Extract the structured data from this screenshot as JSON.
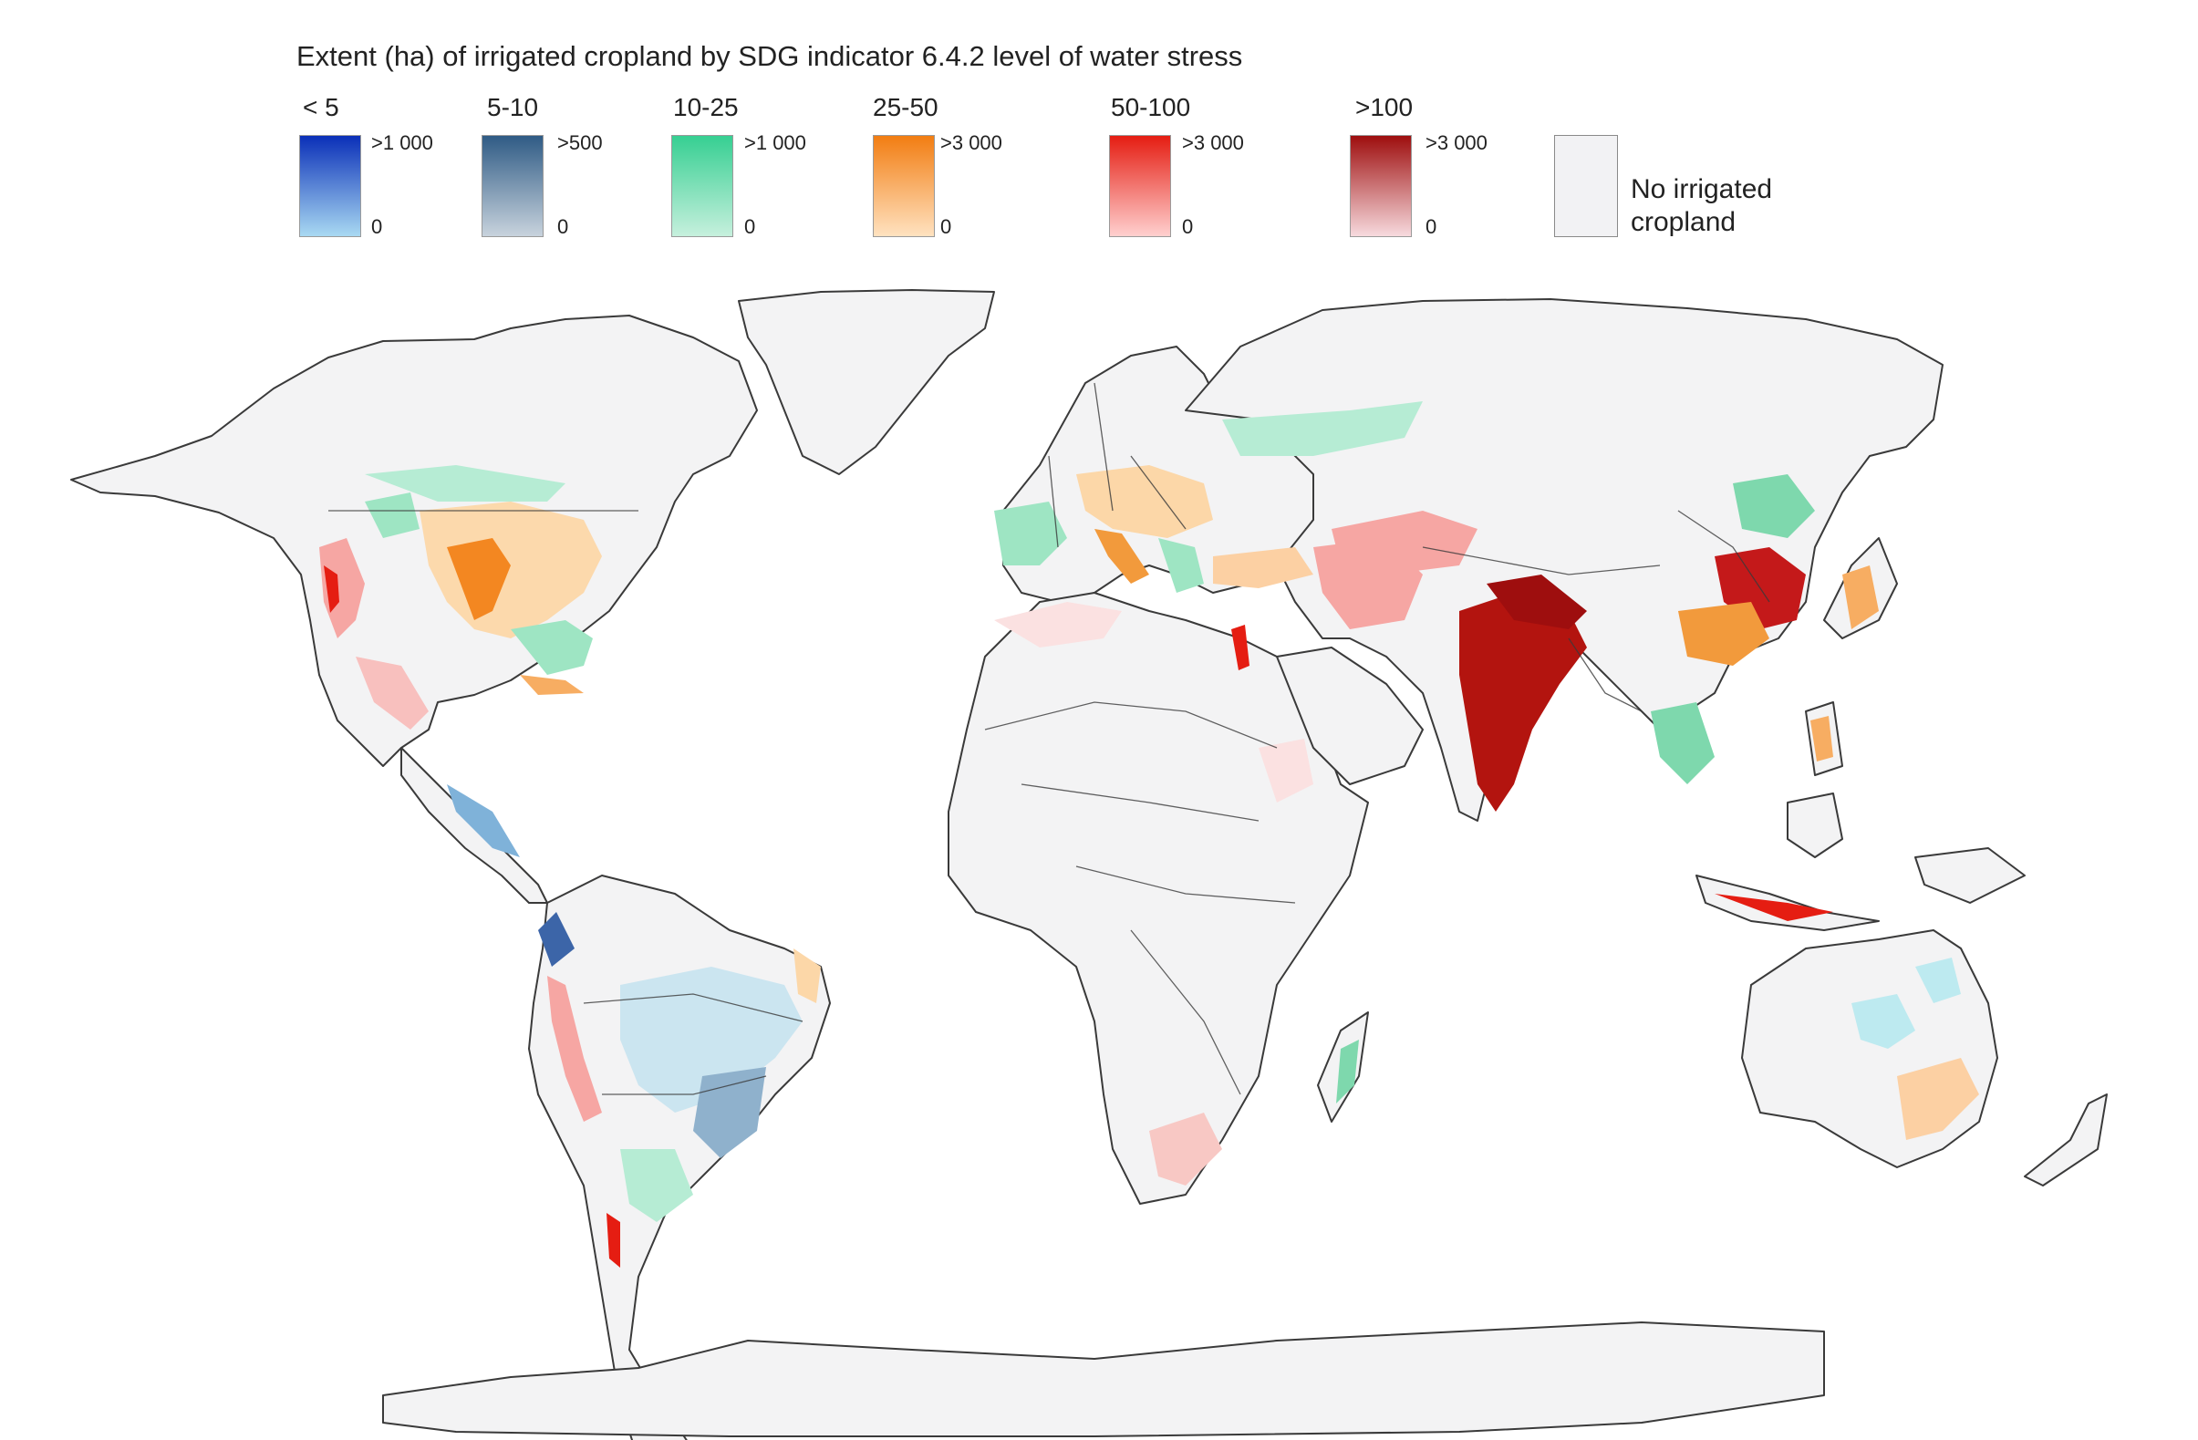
{
  "map_title": "Extent (ha) of irrigated cropland by SDG indicator 6.4.2 level of water stress",
  "legend": [
    {
      "category": "< 5",
      "max_label": ">1 000",
      "min_label": "0",
      "color_top": "#0a2fb8",
      "color_bottom": "#a9d9f2"
    },
    {
      "category": "5-10",
      "max_label": ">500",
      "min_label": "0",
      "color_top": "#2f5b85",
      "color_bottom": "#c8d3dd"
    },
    {
      "category": "10-25",
      "max_label": ">1 000",
      "min_label": "0",
      "color_top": "#36cf92",
      "color_bottom": "#c6f0dd"
    },
    {
      "category": "25-50",
      "max_label": ">3 000",
      "min_label": "0",
      "color_top": "#f27d12",
      "color_bottom": "#ffe2c0"
    },
    {
      "category": "50-100",
      "max_label": ">3 000",
      "min_label": "0",
      "color_top": "#e51d12",
      "color_bottom": "#ffd0cf"
    },
    {
      "category": ">100",
      "max_label": ">3 000",
      "min_label": "0",
      "color_top": "#9e0e0e",
      "color_bottom": "#f7dade"
    }
  ],
  "no_data": {
    "label": "No irrigated cropland",
    "color": "#f2f2f4"
  },
  "land_fill": "#f3f3f4",
  "border_color": "#3a3a3a"
}
